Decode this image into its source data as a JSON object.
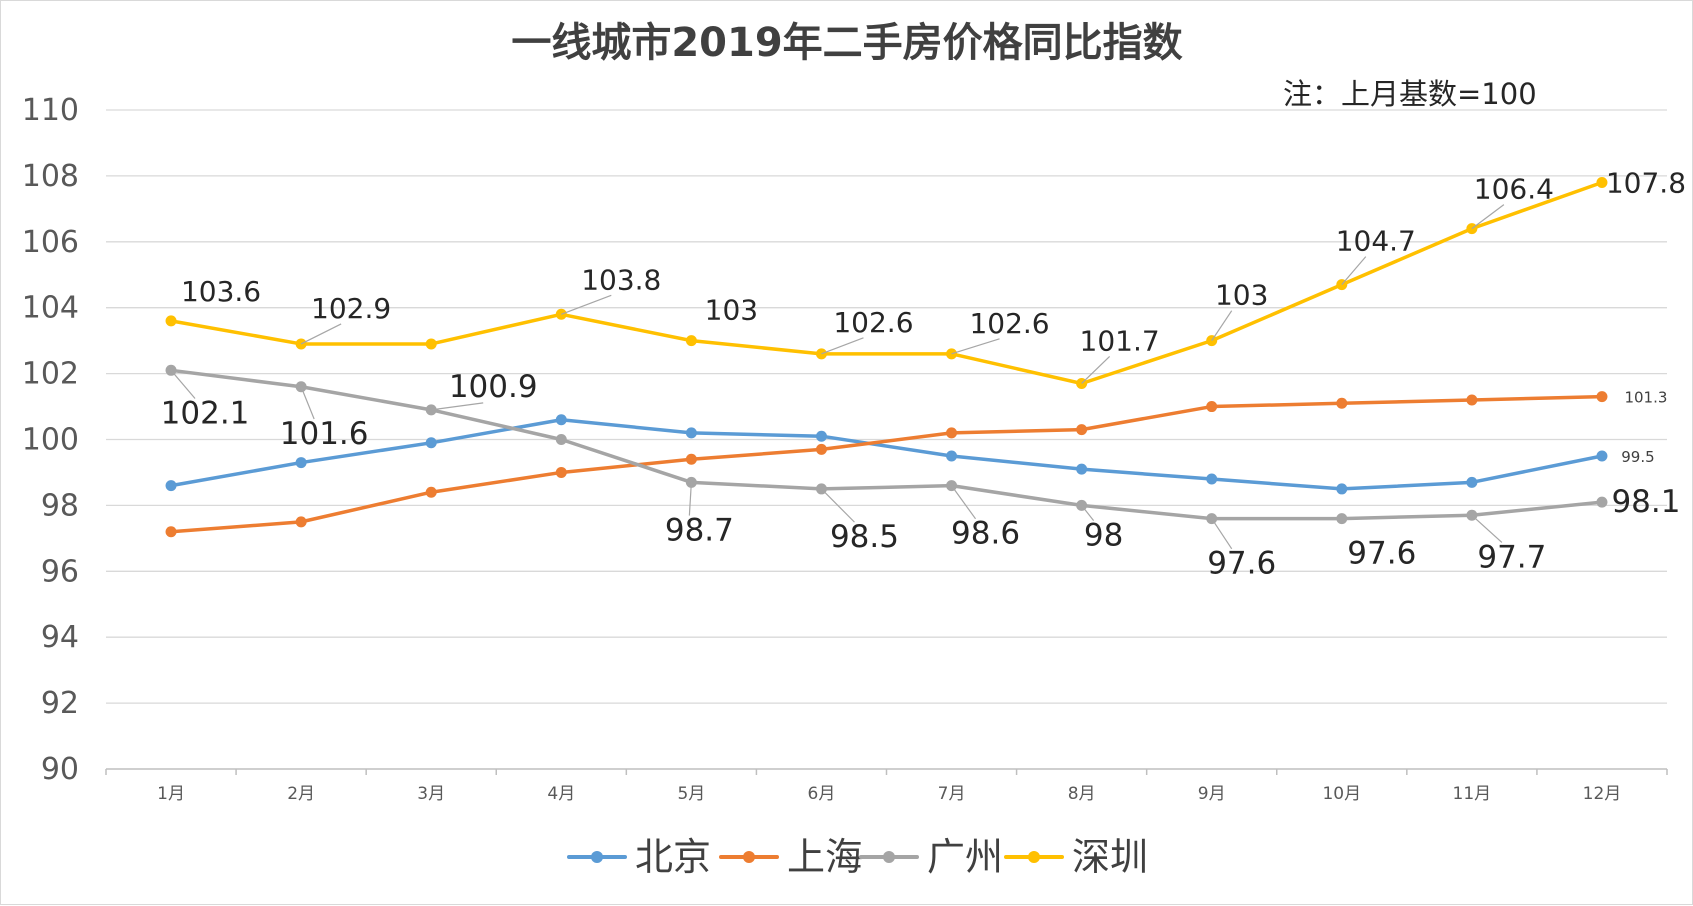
{
  "chart_data": {
    "type": "line",
    "title": "一线城市2019年二手房价格同比指数",
    "note": "注：上月基数=100",
    "categories": [
      "1月",
      "2月",
      "3月",
      "4月",
      "5月",
      "6月",
      "7月",
      "8月",
      "9月",
      "10月",
      "11月",
      "12月"
    ],
    "ylim": [
      90,
      110
    ],
    "yticks": [
      90,
      92,
      94,
      96,
      98,
      100,
      102,
      104,
      106,
      108,
      110
    ],
    "grid": true,
    "legend_position": "bottom",
    "series": [
      {
        "name": "北京",
        "color": "#5B9BD5",
        "values": [
          98.6,
          99.3,
          99.9,
          100.6,
          100.2,
          100.1,
          99.5,
          99.1,
          98.8,
          98.5,
          98.7,
          99.5
        ],
        "labels": [
          null,
          null,
          null,
          null,
          null,
          null,
          null,
          null,
          null,
          null,
          null,
          "99.5"
        ]
      },
      {
        "name": "上海",
        "color": "#ED7D31",
        "values": [
          97.2,
          97.5,
          98.4,
          99.0,
          99.4,
          99.7,
          100.2,
          100.3,
          101.0,
          101.1,
          101.2,
          101.3
        ],
        "labels": [
          null,
          null,
          null,
          null,
          null,
          null,
          null,
          null,
          null,
          null,
          null,
          "101.3"
        ]
      },
      {
        "name": "广州",
        "color": "#A5A5A5",
        "values": [
          102.1,
          101.6,
          100.9,
          100.0,
          98.7,
          98.5,
          98.6,
          98.0,
          97.6,
          97.6,
          97.7,
          98.1
        ],
        "labels": [
          "102.1",
          "101.6",
          "100.9",
          null,
          "98.7",
          "98.5",
          "98.6",
          "98",
          "97.6",
          "97.6",
          "97.7",
          "98.1"
        ]
      },
      {
        "name": "深圳",
        "color": "#FFC000",
        "values": [
          103.6,
          102.9,
          102.9,
          103.8,
          103.0,
          102.6,
          102.6,
          101.7,
          103.0,
          104.7,
          106.4,
          107.8
        ],
        "labels": [
          "103.6",
          "102.9",
          null,
          "103.8",
          "103",
          "102.6",
          "102.6",
          "101.7",
          "103",
          "104.7",
          "106.4",
          "107.8"
        ]
      }
    ]
  }
}
